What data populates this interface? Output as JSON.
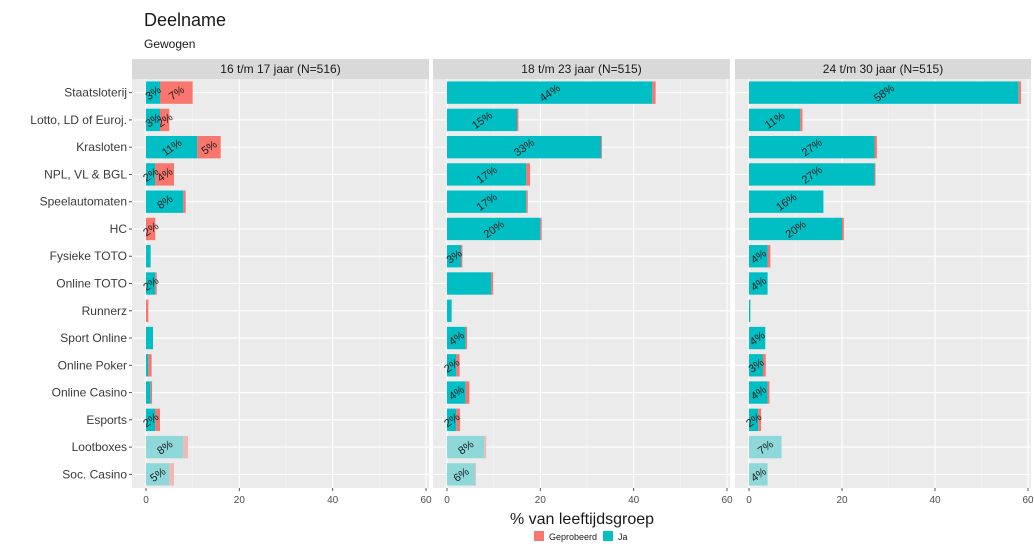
{
  "title": "Deelname",
  "subtitle": "Gewogen",
  "chart_data": {
    "type": "bar",
    "orientation": "horizontal",
    "stacked": true,
    "xlabel": "% van leeftijdsgroep",
    "ylabel": "",
    "xlim": [
      0,
      60
    ],
    "xticks": [
      0,
      20,
      40,
      60
    ],
    "grid": true,
    "legend": {
      "position": "bottom",
      "entries": [
        "Geprobeerd",
        "Ja"
      ]
    },
    "colors": {
      "Geprobeerd": "#f8766d",
      "Ja": "#00bfc4",
      "Geprobeerd_faded": "#f4b8b4",
      "Ja_faded": "#8fd8da"
    },
    "categories": [
      "Staatsloterij",
      "Lotto, LD of Euroj.",
      "Krasloten",
      "NPL, VL & BGL",
      "Speelautomaten",
      "HC",
      "Fysieke TOTO",
      "Online TOTO",
      "Runnerz",
      "Sport Online",
      "Online Poker",
      "Online Casino",
      "Esports",
      "Lootboxes",
      "Soc. Casino"
    ],
    "faded_categories": [
      "Lootboxes",
      "Soc. Casino"
    ],
    "panels": [
      {
        "title": "16 t/m 17 jaar (N=516)",
        "series": [
          {
            "name": "Ja",
            "values": [
              3,
              3,
              11,
              2,
              8,
              0,
              1,
              2,
              0,
              1.5,
              0.5,
              1,
              2,
              8,
              5
            ],
            "labels": [
              "3%",
              "3%",
              "11%",
              "2%",
              "8%",
              "",
              "",
              "2%",
              "",
              "",
              "",
              "",
              "2%",
              "8%",
              "5%"
            ]
          },
          {
            "name": "Geprobeerd",
            "values": [
              7,
              2,
              5,
              4,
              0.5,
              2,
              0,
              0.3,
              0.5,
              0,
              0.7,
              0.3,
              1,
              1,
              1
            ],
            "labels": [
              "7%",
              "2%",
              "5%",
              "4%",
              "",
              "2%",
              "",
              "",
              "",
              "",
              "",
              "",
              "",
              "",
              ""
            ]
          }
        ]
      },
      {
        "title": "18 t/m 23 jaar (N=515)",
        "series": [
          {
            "name": "Ja",
            "values": [
              44,
              15,
              33,
              17,
              17,
              20,
              3,
              9.5,
              1,
              4,
              2,
              4,
              2,
              8,
              6
            ],
            "labels": [
              "44%",
              "15%",
              "33%",
              "17%",
              "17%",
              "20%",
              "3%",
              "",
              "",
              "4%",
              "2%",
              "4%",
              "2%",
              "8%",
              "6%"
            ]
          },
          {
            "name": "Geprobeerd",
            "values": [
              0.7,
              0.3,
              0.2,
              0.8,
              0.3,
              0.3,
              0.3,
              0.4,
              0,
              0.3,
              0.7,
              0.8,
              0.8,
              0.4,
              0.2
            ],
            "labels": [
              "",
              "",
              "",
              "",
              "",
              "",
              "",
              "",
              "",
              "",
              "",
              "",
              "",
              "",
              ""
            ]
          }
        ]
      },
      {
        "title": "24 t/m 30 jaar (N=515)",
        "series": [
          {
            "name": "Ja",
            "values": [
              58,
              11,
              27,
              27,
              16,
              20,
              4,
              4,
              0.3,
              3.5,
              3,
              4,
              2,
              7,
              4
            ],
            "labels": [
              "58%",
              "11%",
              "27%",
              "27%",
              "16%",
              "20%",
              "4%",
              "4%",
              "",
              "4%",
              "3%",
              "4%",
              "2%",
              "7%",
              "4%"
            ]
          },
          {
            "name": "Geprobeerd",
            "values": [
              0.5,
              0.5,
              0.5,
              0.2,
              0,
              0.4,
              0.6,
              0,
              0,
              0,
              0.6,
              0.4,
              0.6,
              0,
              0
            ],
            "labels": [
              "",
              "",
              "",
              "",
              "",
              "",
              "",
              "",
              "",
              "",
              "",
              "",
              "",
              "",
              ""
            ]
          }
        ]
      }
    ]
  }
}
